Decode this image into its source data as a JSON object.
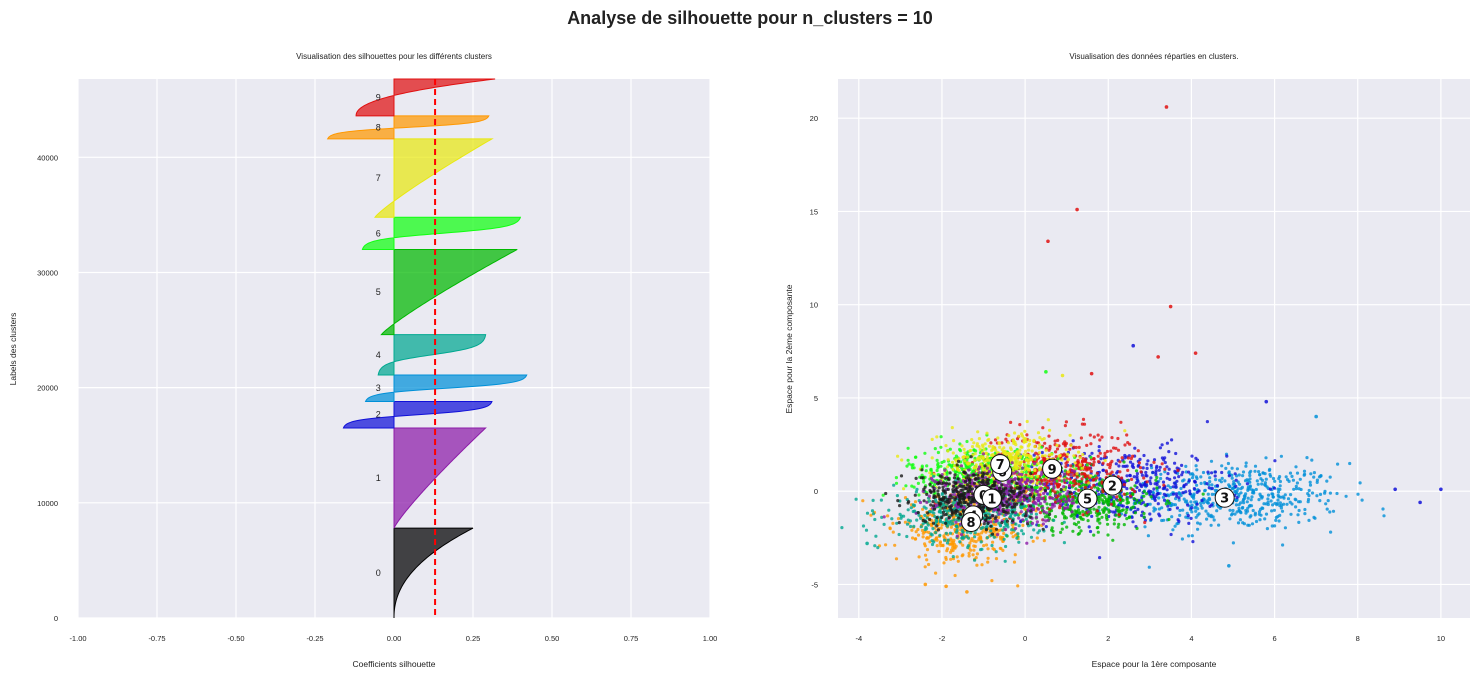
{
  "figure": {
    "title": "Analyse de silhouette pour n_clusters = 10",
    "background": "#ffffff",
    "axes_facecolor": "#eaeaf2",
    "grid_color": "#ffffff"
  },
  "chart_data": [
    {
      "type": "area",
      "subtype": "silhouette",
      "title": "Visualisation des silhouettes pour les différents clusters",
      "xlabel": "Coefficients silhouette",
      "ylabel": "Labels des clusters",
      "xlim": [
        -1.0,
        1.0
      ],
      "ylim": [
        0,
        46800
      ],
      "xticks": [
        "-1.00",
        "-0.75",
        "-0.50",
        "-0.25",
        "0.00",
        "0.25",
        "0.50",
        "0.75",
        "1.00"
      ],
      "xtick_values": [
        -1.0,
        -0.75,
        -0.5,
        -0.25,
        0.0,
        0.25,
        0.5,
        0.75,
        1.0
      ],
      "yticks": [
        "0",
        "10000",
        "20000",
        "30000",
        "40000"
      ],
      "ytick_values": [
        0,
        10000,
        20000,
        30000,
        40000
      ],
      "grid": true,
      "average_silhouette": 0.13,
      "average_line_color": "#ff0000",
      "clusters": [
        {
          "label": "0",
          "y_start": 0,
          "y_end": 7800,
          "min": 0.0,
          "max": 0.25,
          "color": "#000000",
          "shape": "convex"
        },
        {
          "label": "1",
          "y_start": 7800,
          "y_end": 16500,
          "min": 0.0,
          "max": 0.29,
          "color": "#8c1aa8",
          "shape": "linear"
        },
        {
          "label": "2",
          "y_start": 16500,
          "y_end": 18800,
          "min": -0.16,
          "max": 0.31,
          "color": "#1010d8",
          "shape": "sigmoid"
        },
        {
          "label": "3",
          "y_start": 18800,
          "y_end": 21100,
          "min": -0.09,
          "max": 0.42,
          "color": "#0090d8",
          "shape": "sigmoid"
        },
        {
          "label": "4",
          "y_start": 21100,
          "y_end": 24600,
          "min": -0.05,
          "max": 0.29,
          "color": "#00a890",
          "shape": "sigmoid"
        },
        {
          "label": "5",
          "y_start": 24600,
          "y_end": 32000,
          "min": -0.04,
          "max": 0.39,
          "color": "#00b800",
          "shape": "linear"
        },
        {
          "label": "6",
          "y_start": 32000,
          "y_end": 34800,
          "min": -0.1,
          "max": 0.4,
          "color": "#10ff10",
          "shape": "sigmoid"
        },
        {
          "label": "7",
          "y_start": 34800,
          "y_end": 41600,
          "min": -0.06,
          "max": 0.31,
          "color": "#e8e810",
          "shape": "linear"
        },
        {
          "label": "8",
          "y_start": 41600,
          "y_end": 43600,
          "min": -0.21,
          "max": 0.3,
          "color": "#ff9800",
          "shape": "sigmoid"
        },
        {
          "label": "9",
          "y_start": 43600,
          "y_end": 46800,
          "min": -0.12,
          "max": 0.32,
          "color": "#e01010",
          "shape": "convex"
        }
      ]
    },
    {
      "type": "scatter",
      "title": "Visualisation des données réparties en clusters.",
      "xlabel": "Espace pour la 1ère composante",
      "ylabel": "Espace pour la 2ème composante",
      "xlim": [
        -4.5,
        10.7
      ],
      "ylim": [
        -6.8,
        22.1
      ],
      "xticks": [
        "-4",
        "-2",
        "0",
        "2",
        "4",
        "6",
        "8",
        "10"
      ],
      "xtick_values": [
        -4,
        -2,
        0,
        2,
        4,
        6,
        8,
        10
      ],
      "yticks": [
        "-5",
        "0",
        "5",
        "10",
        "15",
        "20"
      ],
      "ytick_values": [
        -5,
        0,
        5,
        10,
        15,
        20
      ],
      "grid": true,
      "centroids": [
        {
          "label": "0",
          "x": -1.0,
          "y": -0.2
        },
        {
          "label": "1",
          "x": -0.8,
          "y": -0.4
        },
        {
          "label": "2",
          "x": 2.1,
          "y": 0.3
        },
        {
          "label": "3",
          "x": 4.8,
          "y": -0.35
        },
        {
          "label": "4",
          "x": -1.25,
          "y": -1.3
        },
        {
          "label": "5",
          "x": 1.5,
          "y": -0.4
        },
        {
          "label": "6",
          "x": -0.55,
          "y": 1.05
        },
        {
          "label": "7",
          "x": -0.6,
          "y": 1.45
        },
        {
          "label": "8",
          "x": -1.3,
          "y": -1.65
        },
        {
          "label": "9",
          "x": 0.65,
          "y": 1.2
        }
      ],
      "clusters": [
        {
          "label": "0",
          "color": "#1a1a1a",
          "center": [
            -1.2,
            -0.3
          ],
          "spread": [
            0.7,
            0.7
          ]
        },
        {
          "label": "1",
          "color": "#8c1aa8",
          "center": [
            -0.5,
            -0.2
          ],
          "spread": [
            0.8,
            0.8
          ]
        },
        {
          "label": "2",
          "color": "#1010d8",
          "center": [
            2.4,
            0.3
          ],
          "spread": [
            1.2,
            1.0
          ]
        },
        {
          "label": "3",
          "color": "#0090d8",
          "center": [
            5.0,
            -0.3
          ],
          "spread": [
            1.3,
            0.9
          ]
        },
        {
          "label": "4",
          "color": "#00a890",
          "center": [
            -1.4,
            -1.3
          ],
          "spread": [
            0.9,
            0.7
          ]
        },
        {
          "label": "5",
          "color": "#00b800",
          "center": [
            1.4,
            -0.5
          ],
          "spread": [
            0.9,
            0.8
          ]
        },
        {
          "label": "6",
          "color": "#10ff10",
          "center": [
            -1.0,
            1.0
          ],
          "spread": [
            0.9,
            0.7
          ]
        },
        {
          "label": "7",
          "color": "#e8e810",
          "center": [
            -0.5,
            1.5
          ],
          "spread": [
            0.8,
            0.8
          ]
        },
        {
          "label": "8",
          "color": "#ff9800",
          "center": [
            -1.5,
            -2.0
          ],
          "spread": [
            0.8,
            0.9
          ]
        },
        {
          "label": "9",
          "color": "#e01010",
          "center": [
            0.8,
            1.2
          ],
          "spread": [
            1.0,
            1.0
          ]
        }
      ],
      "outliers": [
        {
          "x": 3.4,
          "y": 20.6,
          "color": "#e01010"
        },
        {
          "x": 1.25,
          "y": 15.1,
          "color": "#e01010"
        },
        {
          "x": 0.55,
          "y": 13.4,
          "color": "#e01010"
        },
        {
          "x": 3.5,
          "y": 9.9,
          "color": "#e01010"
        },
        {
          "x": 2.6,
          "y": 7.8,
          "color": "#1010d8"
        },
        {
          "x": 4.1,
          "y": 7.4,
          "color": "#e01010"
        },
        {
          "x": 3.2,
          "y": 7.2,
          "color": "#e01010"
        },
        {
          "x": 5.8,
          "y": 4.8,
          "color": "#1010d8"
        },
        {
          "x": 7.0,
          "y": 4.0,
          "color": "#0090d8"
        },
        {
          "x": 10.0,
          "y": 0.1,
          "color": "#1010d8"
        },
        {
          "x": 9.5,
          "y": -0.6,
          "color": "#1010d8"
        },
        {
          "x": 8.9,
          "y": 0.1,
          "color": "#1010d8"
        },
        {
          "x": 4.9,
          "y": -4.0,
          "color": "#0090d8"
        },
        {
          "x": -1.4,
          "y": -5.4,
          "color": "#ff9800"
        },
        {
          "x": -2.4,
          "y": -5.0,
          "color": "#ff9800"
        },
        {
          "x": -3.8,
          "y": -2.8,
          "color": "#00a890"
        },
        {
          "x": -1.9,
          "y": -5.1,
          "color": "#ff9800"
        },
        {
          "x": 1.6,
          "y": 6.3,
          "color": "#e01010"
        },
        {
          "x": 0.9,
          "y": 6.2,
          "color": "#e8e810"
        },
        {
          "x": 0.5,
          "y": 6.4,
          "color": "#10ff10"
        }
      ]
    }
  ]
}
